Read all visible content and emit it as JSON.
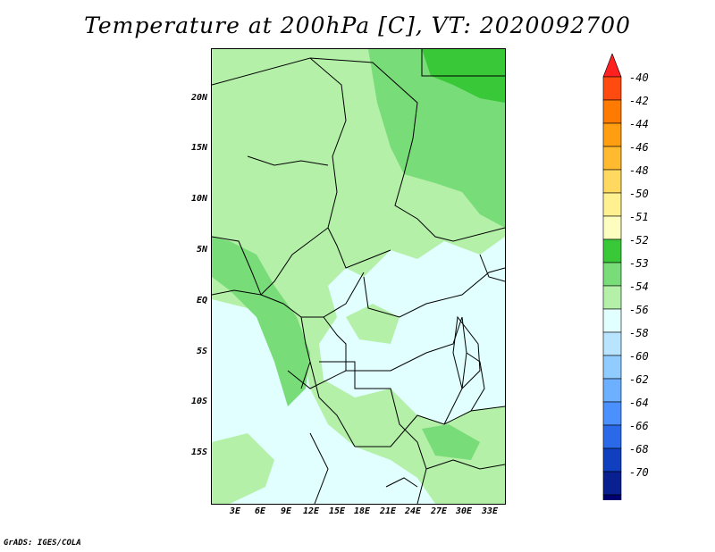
{
  "title": "Temperature at 200hPa [C], VT: 2020092700",
  "credit": "GrADS: IGES/COLA",
  "y_ticks": [
    "20N",
    "15N",
    "10N",
    "5N",
    "EQ",
    "5S",
    "10S",
    "15S"
  ],
  "x_ticks": [
    "3E",
    "6E",
    "9E",
    "12E",
    "15E",
    "18E",
    "21E",
    "24E",
    "27E",
    "30E",
    "33E"
  ],
  "colorbar": {
    "labels": [
      "-40",
      "-42",
      "-44",
      "-46",
      "-48",
      "-50",
      "-51",
      "-52",
      "-53",
      "-54",
      "-56",
      "-58",
      "-60",
      "-62",
      "-64",
      "-66",
      "-68",
      "-70"
    ],
    "colors": [
      "#ff2020",
      "#ff4a10",
      "#ff7a00",
      "#ff9e10",
      "#ffba30",
      "#ffd860",
      "#fff090",
      "#fdfdc0",
      "#38c838",
      "#78dc78",
      "#b4f0a8",
      "#e1ffff",
      "#b8e4ff",
      "#90ccff",
      "#6cb0ff",
      "#4a90ff",
      "#2a6ae8",
      "#1040c0",
      "#082090",
      "#000070",
      "#dcdcff"
    ]
  },
  "map_colors": {
    "background": "#e1ffff",
    "light_green": "#b4f0a8",
    "mid_green": "#78dc78",
    "dark_green": "#38c838"
  }
}
